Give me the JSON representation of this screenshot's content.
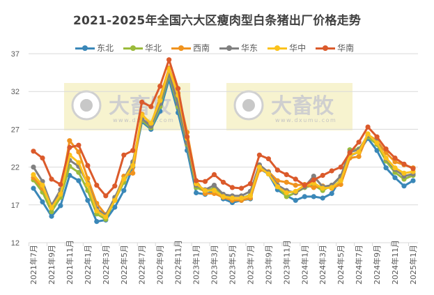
{
  "chart_data": {
    "type": "line",
    "title": "2021-2025年全国六大区瘦肉型白条猪出厂价格走势",
    "xlabel": "",
    "ylabel": "",
    "ylim": [
      12,
      37
    ],
    "yticks": [
      12,
      17,
      22,
      27,
      32,
      37
    ],
    "grid": true,
    "legend_position": "top",
    "x": [
      "2021年7月",
      "2021年8月",
      "2021年9月",
      "2021年10月",
      "2021年11月",
      "2021年12月",
      "2022年1月",
      "2022年2月",
      "2022年3月",
      "2022年4月",
      "2022年5月",
      "2022年6月",
      "2022年7月",
      "2022年8月",
      "2022年9月",
      "2022年10月",
      "2022年11月",
      "2022年12月",
      "2023年1月",
      "2023年2月",
      "2023年3月",
      "2023年4月",
      "2023年5月",
      "2023年6月",
      "2023年7月",
      "2023年8月",
      "2023年9月",
      "2023年10月",
      "2023年11月",
      "2023年12月",
      "2024年1月",
      "2024年2月",
      "2024年3月",
      "2024年4月",
      "2024年5月",
      "2024年6月",
      "2024年7月",
      "2024年8月",
      "2024年9月",
      "2024年10月",
      "2024年11月",
      "2024年12月",
      "2025年1月"
    ],
    "x_tick_labels": [
      "2021年7月",
      "2021年9月",
      "2021年11月",
      "2022年1月",
      "2022年3月",
      "2022年5月",
      "2022年7月",
      "2022年9月",
      "2022年11月",
      "2023年1月",
      "2023年3月",
      "2023年5月",
      "2023年7月",
      "2023年9月",
      "2023年11月",
      "2024年1月",
      "2024年3月",
      "2024年5月",
      "2024年7月",
      "2024年9月",
      "2024年11月",
      "2025年1月"
    ],
    "series": [
      {
        "name": "东北",
        "color": "#3A87B8",
        "values": [
          19.2,
          17.4,
          15.5,
          16.9,
          20.9,
          20.2,
          17.6,
          14.8,
          15.0,
          16.7,
          18.9,
          22.0,
          28.0,
          27.0,
          29.4,
          33.6,
          29.2,
          24.2,
          18.6,
          18.4,
          18.9,
          17.8,
          17.3,
          17.6,
          17.8,
          21.8,
          21.1,
          19.0,
          18.2,
          17.6,
          18.1,
          18.1,
          17.9,
          18.5,
          20.5,
          23.5,
          24.0,
          25.8,
          24.2,
          21.9,
          20.6,
          19.5,
          20.2
        ]
      },
      {
        "name": "华北",
        "color": "#9BBB3B",
        "values": [
          20.3,
          18.7,
          16.1,
          18.0,
          22.1,
          21.3,
          18.9,
          15.8,
          15.1,
          17.6,
          20.0,
          22.5,
          28.2,
          27.2,
          30.0,
          34.2,
          30.0,
          25.0,
          19.3,
          18.8,
          19.2,
          18.3,
          17.9,
          17.9,
          18.3,
          22.1,
          21.2,
          19.4,
          18.1,
          18.6,
          19.3,
          19.6,
          18.9,
          19.6,
          20.7,
          24.3,
          24.4,
          26.0,
          25.0,
          22.8,
          21.3,
          20.4,
          20.9
        ]
      },
      {
        "name": "西南",
        "color": "#F0931E",
        "values": [
          20.6,
          19.2,
          17.0,
          18.6,
          25.5,
          24.0,
          20.5,
          17.2,
          15.7,
          17.8,
          20.8,
          21.2,
          29.0,
          27.6,
          31.2,
          35.1,
          31.8,
          26.6,
          20.2,
          18.5,
          18.5,
          18.0,
          17.6,
          17.6,
          17.9,
          21.6,
          21.4,
          20.2,
          20.0,
          19.6,
          19.7,
          19.3,
          19.5,
          19.2,
          19.7,
          23.2,
          23.4,
          26.3,
          25.5,
          23.9,
          22.7,
          22.3,
          21.9
        ]
      },
      {
        "name": "华东",
        "color": "#808080",
        "values": [
          22.0,
          20.1,
          16.9,
          19.0,
          22.9,
          22.1,
          19.8,
          16.5,
          15.6,
          18.0,
          20.4,
          22.7,
          28.4,
          27.4,
          30.4,
          34.4,
          30.4,
          25.2,
          19.6,
          19.0,
          19.6,
          18.4,
          18.2,
          18.2,
          18.8,
          22.3,
          21.3,
          19.6,
          18.9,
          18.6,
          19.4,
          20.8,
          19.4,
          19.6,
          20.8,
          24.0,
          24.3,
          26.2,
          25.4,
          23.1,
          21.7,
          20.8,
          21.1
        ]
      },
      {
        "name": "华中",
        "color": "#FBC21C",
        "values": [
          21.0,
          19.6,
          16.6,
          18.4,
          23.6,
          22.6,
          19.7,
          16.2,
          15.4,
          17.6,
          20.4,
          22.2,
          28.9,
          27.8,
          30.8,
          35.0,
          31.5,
          25.8,
          19.8,
          18.9,
          18.9,
          18.1,
          17.9,
          17.9,
          18.2,
          22.0,
          21.1,
          19.4,
          18.6,
          18.8,
          19.6,
          19.9,
          19.2,
          19.3,
          20.2,
          23.6,
          24.0,
          26.4,
          25.2,
          23.2,
          21.9,
          21.2,
          21.4
        ]
      },
      {
        "name": "华南",
        "color": "#DB5A2B",
        "values": [
          24.1,
          23.2,
          20.4,
          19.7,
          24.6,
          24.9,
          22.2,
          19.6,
          18.2,
          19.5,
          23.6,
          24.2,
          30.6,
          30.0,
          32.7,
          36.2,
          32.4,
          26.0,
          20.2,
          20.1,
          21.0,
          20.0,
          19.3,
          19.2,
          19.8,
          23.6,
          23.1,
          21.6,
          21.0,
          20.4,
          19.6,
          20.3,
          20.9,
          21.5,
          22.0,
          23.9,
          25.3,
          27.3,
          26.0,
          24.4,
          23.2,
          22.4,
          21.8
        ]
      }
    ]
  },
  "watermarks": [
    {
      "brand": "大畜牧",
      "url": "www.dxumu.com"
    },
    {
      "brand": "大畜牧",
      "url": "www.dxumu.com"
    }
  ]
}
